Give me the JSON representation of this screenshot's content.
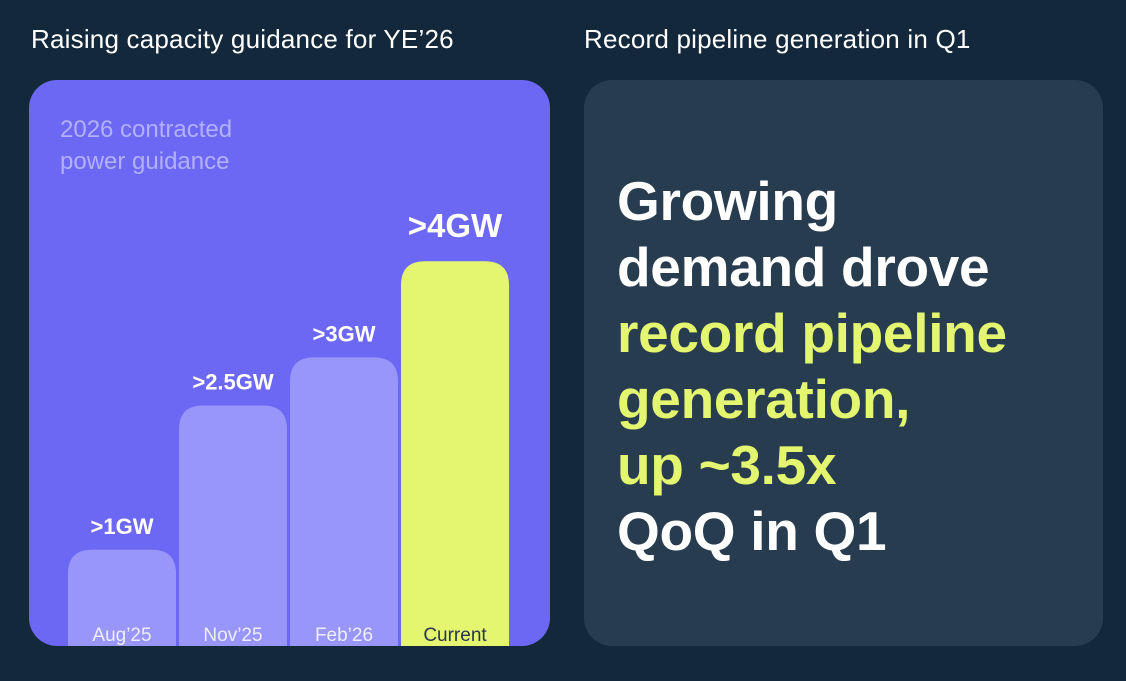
{
  "left_panel": {
    "title": "Raising capacity guidance for YE’26",
    "caption": "2026 contracted power guidance"
  },
  "right_panel": {
    "title": "Record pipeline generation in Q1",
    "message_lines": [
      {
        "text": "Growing",
        "style": "white"
      },
      {
        "text": "demand drove",
        "style": "white"
      },
      {
        "text": "record pipeline",
        "style": "accent"
      },
      {
        "text": "generation,",
        "style": "accent"
      },
      {
        "text": "up ~3.5x",
        "style": "accent"
      },
      {
        "text": "QoQ in Q1",
        "style": "white"
      }
    ]
  },
  "colors": {
    "background": "#14283b",
    "chart_panel": "#6c68f4",
    "text_panel": "#283c50",
    "past_bar": "#9896f8",
    "current_bar": "#e4f66f",
    "accent_text": "#e4f66f"
  },
  "chart_data": {
    "type": "bar",
    "title": "2026 contracted power guidance",
    "xlabel": "",
    "ylabel": "",
    "unit": "GW",
    "categories": [
      "Aug’25",
      "Nov’25",
      "Feb’26",
      "Current"
    ],
    "values": [
      1,
      2.5,
      3,
      4
    ],
    "value_labels": [
      ">1GW",
      ">2.5GW",
      ">3GW",
      ">4GW"
    ],
    "highlight_index": 3,
    "ylim": [
      0,
      4.2
    ],
    "grid": false,
    "axes_visible": false
  }
}
